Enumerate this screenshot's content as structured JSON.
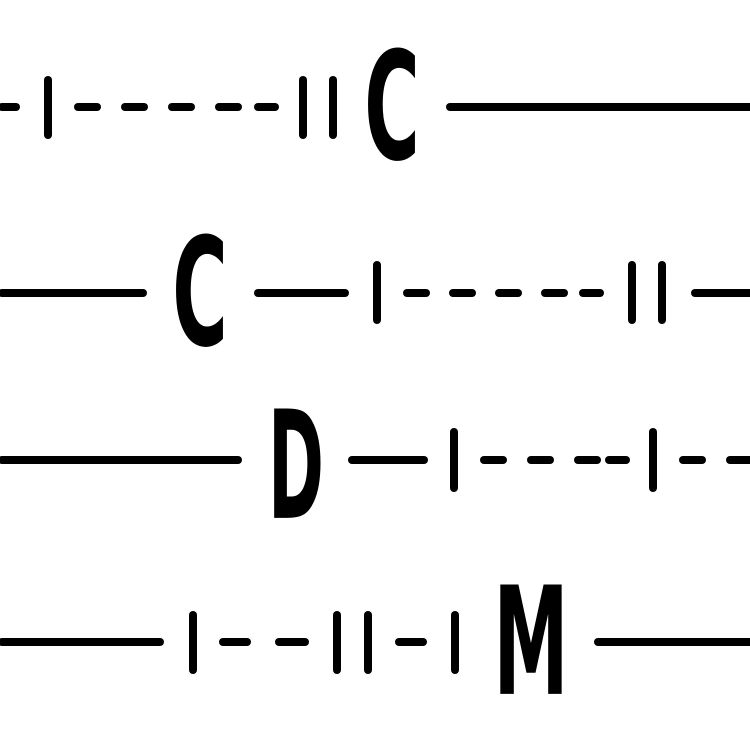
{
  "artwork": {
    "rows": [
      {
        "letter": "C"
      },
      {
        "letter": "C"
      },
      {
        "letter": "D"
      },
      {
        "letter": "M"
      }
    ]
  },
  "colors": {
    "background": "#ffffff",
    "ink": "#000000"
  }
}
